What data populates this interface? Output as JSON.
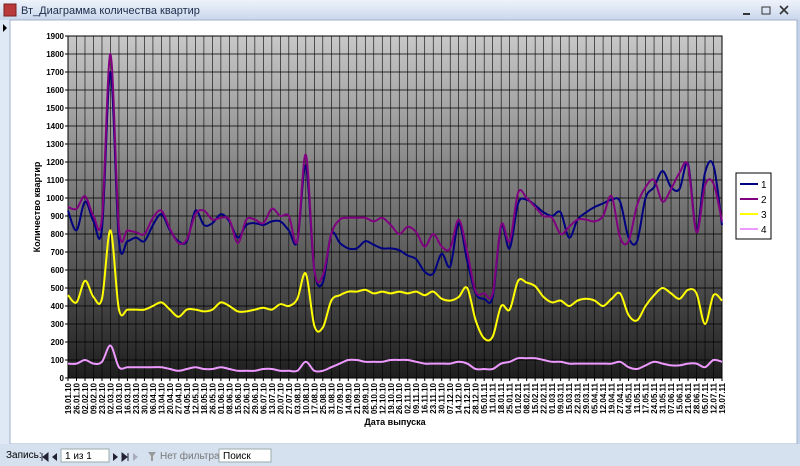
{
  "window": {
    "title": "Вт_Диаграмма количества квартир"
  },
  "navigation": {
    "record_label": "Запись:",
    "position": "1 из 1",
    "filter": "Нет фильтра",
    "search": "Поиск"
  },
  "chart_data": {
    "type": "line",
    "y_label": "Количество квартир",
    "x_label": "Дата выпуска",
    "categories": [
      "19.01.10",
      "26.01.10",
      "02.02.10",
      "09.02.10",
      "23.02.10",
      "02.03.10",
      "10.03.10",
      "16.03.10",
      "23.03.10",
      "30.03.10",
      "06.04.10",
      "13.04.10",
      "20.04.10",
      "27.04.10",
      "04.05.10",
      "12.05.10",
      "18.05.10",
      "26.05.10",
      "01.06.10",
      "08.06.10",
      "15.06.10",
      "22.06.10",
      "29.06.10",
      "06.07.10",
      "13.07.10",
      "20.07.10",
      "27.07.10",
      "03.08.10",
      "10.08.10",
      "17.08.10",
      "25.08.10",
      "31.08.10",
      "07.09.10",
      "14.09.10",
      "21.09.10",
      "28.09.10",
      "05.10.10",
      "12.10.10",
      "19.10.10",
      "26.10.10",
      "02.11.10",
      "09.11.10",
      "16.11.10",
      "23.11.10",
      "30.11.10",
      "07.12.10",
      "14.12.10",
      "21.12.10",
      "28.12.10",
      "05.01.11",
      "11.01.11",
      "18.01.11",
      "25.01.11",
      "01.02.11",
      "08.02.11",
      "15.02.11",
      "22.02.11",
      "01.03.11",
      "09.03.11",
      "15.03.11",
      "22.03.11",
      "29.03.11",
      "05.04.11",
      "12.04.11",
      "19.04.11",
      "27.04.11",
      "04.05.11",
      "11.05.11",
      "17.05.11",
      "24.05.11",
      "31.05.11",
      "07.06.11",
      "15.06.11",
      "21.06.11",
      "28.06.11",
      "05.07.11",
      "12.07.11",
      "19.07.11"
    ],
    "series": [
      {
        "name": "1",
        "color": "#000080",
        "values": [
          930,
          820,
          980,
          870,
          830,
          1700,
          760,
          760,
          780,
          760,
          850,
          910,
          820,
          760,
          760,
          930,
          850,
          860,
          910,
          870,
          780,
          850,
          860,
          850,
          870,
          870,
          820,
          760,
          1180,
          600,
          530,
          800,
          750,
          720,
          720,
          760,
          740,
          720,
          720,
          710,
          680,
          660,
          590,
          580,
          690,
          620,
          860,
          650,
          470,
          440,
          450,
          840,
          720,
          970,
          990,
          960,
          920,
          900,
          920,
          780,
          880,
          920,
          950,
          970,
          990,
          980,
          780,
          760,
          1000,
          1060,
          1150,
          1060,
          1050,
          1190,
          820,
          1140,
          1180,
          850
        ]
      },
      {
        "name": "2",
        "color": "#800080",
        "values": [
          950,
          940,
          1010,
          900,
          890,
          1800,
          830,
          820,
          810,
          800,
          890,
          930,
          830,
          750,
          770,
          910,
          930,
          880,
          890,
          880,
          750,
          880,
          880,
          860,
          940,
          900,
          900,
          760,
          1240,
          600,
          570,
          800,
          880,
          890,
          890,
          890,
          870,
          890,
          850,
          800,
          840,
          810,
          730,
          800,
          730,
          720,
          880,
          700,
          480,
          470,
          470,
          850,
          760,
          1030,
          1000,
          950,
          900,
          890,
          800,
          840,
          880,
          880,
          870,
          900,
          1010,
          780,
          760,
          960,
          1060,
          1100,
          980,
          1050,
          1140,
          1180,
          810,
          1070,
          1080,
          870
        ]
      },
      {
        "name": "3",
        "color": "#ffff00",
        "values": [
          460,
          420,
          540,
          450,
          440,
          820,
          380,
          380,
          380,
          380,
          400,
          420,
          380,
          340,
          380,
          380,
          370,
          380,
          420,
          400,
          370,
          370,
          380,
          390,
          380,
          410,
          400,
          440,
          580,
          290,
          280,
          430,
          460,
          480,
          480,
          490,
          470,
          480,
          470,
          480,
          470,
          480,
          460,
          480,
          440,
          430,
          450,
          500,
          320,
          220,
          230,
          400,
          380,
          540,
          530,
          510,
          450,
          420,
          430,
          400,
          430,
          440,
          430,
          400,
          440,
          470,
          350,
          320,
          400,
          460,
          500,
          470,
          440,
          490,
          470,
          300,
          460,
          430
        ]
      },
      {
        "name": "4",
        "color": "#ee99ff",
        "values": [
          80,
          80,
          100,
          80,
          90,
          180,
          60,
          60,
          60,
          60,
          60,
          60,
          50,
          40,
          50,
          60,
          50,
          50,
          60,
          50,
          40,
          40,
          40,
          50,
          50,
          40,
          40,
          40,
          90,
          40,
          40,
          60,
          80,
          100,
          100,
          90,
          90,
          90,
          100,
          100,
          100,
          90,
          80,
          80,
          80,
          80,
          90,
          80,
          50,
          50,
          50,
          80,
          90,
          110,
          110,
          110,
          100,
          90,
          90,
          80,
          80,
          80,
          80,
          80,
          80,
          90,
          60,
          50,
          70,
          90,
          80,
          70,
          70,
          80,
          80,
          60,
          100,
          90
        ]
      }
    ],
    "ylim": [
      0,
      1900
    ],
    "yticks": [
      0,
      100,
      200,
      300,
      400,
      500,
      600,
      700,
      800,
      900,
      1000,
      1100,
      1200,
      1300,
      1400,
      1500,
      1600,
      1700,
      1800,
      1900
    ],
    "grid": true,
    "legend": "right"
  }
}
